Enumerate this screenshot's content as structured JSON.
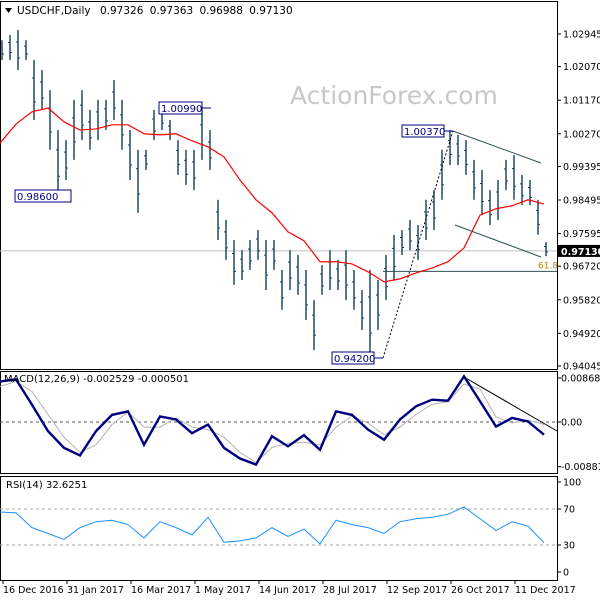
{
  "header": {
    "menu_icon": "triangle-down-icon",
    "symbol": "USDCHF,Daily",
    "open": "0.97326",
    "high": "0.97363",
    "low": "0.96988",
    "close": "0.97130"
  },
  "watermark": "ActionForex.com",
  "colors": {
    "bars": "#123f5e",
    "moving_average": "#ff0000",
    "macd": "#000080",
    "signal": "#b4b4b4",
    "rsi": "#1e90ff",
    "label_border": "#000080",
    "price_tag_bg": "#000000"
  },
  "chart_data": [
    {
      "type": "ohlc",
      "panel": "price",
      "ylim": [
        0.94045,
        1.02945
      ],
      "y_ticks": [
        "1.02945",
        "1.02070",
        "1.01170",
        "1.00270",
        "0.99395",
        "0.98495",
        "0.97595",
        "0.96720",
        "0.95820",
        "0.94920",
        "0.94045"
      ],
      "x_ticks": [
        "16 Dec 2016",
        "31 Jan 2017",
        "16 Mar 2017",
        "1 May 2017",
        "14 Jun 2017",
        "28 Jul 2017",
        "12 Sep 2017",
        "26 Oct 2017",
        "11 Dec 2017"
      ],
      "bars_high_low": [
        [
          1.0278,
          1.0225
        ],
        [
          1.0292,
          1.0225
        ],
        [
          1.0305,
          1.0198
        ],
        [
          1.0278,
          1.0225
        ],
        [
          1.0225,
          1.0064
        ],
        [
          1.0198,
          1.0091
        ],
        [
          1.0144,
          0.9984
        ],
        [
          1.0037,
          0.986
        ],
        [
          1.001,
          0.9903
        ],
        [
          1.0118,
          0.9957
        ],
        [
          1.0144,
          1.001
        ],
        [
          1.0091,
          0.9984
        ],
        [
          1.0118,
          1.001
        ],
        [
          1.0118,
          1.0037
        ],
        [
          1.0171,
          1.0064
        ],
        [
          1.0118,
          0.9984
        ],
        [
          1.0037,
          0.9903
        ],
        [
          0.9984,
          0.9815
        ],
        [
          0.9984,
          0.993
        ],
        [
          1.0091,
          1.001
        ],
        [
          1.0099,
          1.0037
        ],
        [
          1.0064,
          1.001
        ],
        [
          1.001,
          0.9917
        ],
        [
          0.9984,
          0.989
        ],
        [
          0.9984,
          0.9876
        ],
        [
          1.0091,
          0.9957
        ],
        [
          1.0037,
          0.993
        ],
        [
          0.985,
          0.9742
        ],
        [
          0.9796,
          0.9689
        ],
        [
          0.9742,
          0.9622
        ],
        [
          0.9715,
          0.9635
        ],
        [
          0.9742,
          0.9662
        ],
        [
          0.9769,
          0.9689
        ],
        [
          0.9742,
          0.9608
        ],
        [
          0.9742,
          0.9662
        ],
        [
          0.9662,
          0.9555
        ],
        [
          0.9715,
          0.9608
        ],
        [
          0.9702,
          0.9595
        ],
        [
          0.9662,
          0.9528
        ],
        [
          0.9581,
          0.9447
        ],
        [
          0.9675,
          0.9595
        ],
        [
          0.9715,
          0.9608
        ],
        [
          0.9689,
          0.9608
        ],
        [
          0.9715,
          0.9581
        ],
        [
          0.9662,
          0.9555
        ],
        [
          0.9608,
          0.9501
        ],
        [
          0.9662,
          0.942
        ],
        [
          0.9635,
          0.9501
        ],
        [
          0.9702,
          0.9581
        ],
        [
          0.9756,
          0.9635
        ],
        [
          0.9769,
          0.9702
        ],
        [
          0.9796,
          0.9715
        ],
        [
          0.9782,
          0.9689
        ],
        [
          0.985,
          0.9742
        ],
        [
          0.9876,
          0.9769
        ],
        [
          0.9984,
          0.985
        ],
        [
          1.0037,
          0.9943
        ],
        [
          1.0024,
          0.9943
        ],
        [
          1.001,
          0.9917
        ],
        [
          0.9957,
          0.985
        ],
        [
          0.993,
          0.9809
        ],
        [
          0.9876,
          0.9782
        ],
        [
          0.9903,
          0.9796
        ],
        [
          0.9957,
          0.9876
        ],
        [
          0.997,
          0.985
        ],
        [
          0.9917,
          0.9836
        ],
        [
          0.9903,
          0.9836
        ],
        [
          0.985,
          0.9756
        ],
        [
          0.97363,
          0.96988
        ]
      ],
      "moving_average": [
        1.0002,
        1.0053,
        1.0086,
        1.0096,
        1.0059,
        1.0037,
        1.004,
        1.0051,
        1.0051,
        1.0027,
        1.0024,
        1.0027,
        1.0008,
        0.9992,
        0.9965,
        0.9903,
        0.985,
        0.9815,
        0.9764,
        0.974,
        0.9684,
        0.9684,
        0.9678,
        0.9657,
        0.963,
        0.9638,
        0.9654,
        0.9667,
        0.9684,
        0.9721,
        0.9809,
        0.9826,
        0.9834,
        0.985,
        0.9839
      ],
      "current_price": "0.97130",
      "annotations": {
        "swing_low_1": "0.98600",
        "swing_high_1": "1.00990",
        "swing_high_2": "1.00370",
        "swing_low_2": "0.94200",
        "fib_level": "61.8",
        "fib_price": 0.9658
      }
    },
    {
      "type": "line",
      "panel": "macd",
      "title": "MACD(12,26,9) -0.002529 -0.000501",
      "ylim": [
        -0.008818,
        0.00868
      ],
      "y_ticks": [
        "0.00868",
        "0.00",
        "-0.008818"
      ],
      "series": [
        {
          "values": [
            0.008,
            0.0084,
            0.0034,
            -0.0018,
            -0.0051,
            -0.0066,
            -0.0018,
            0.0014,
            0.0021,
            -0.0045,
            0.0011,
            0.0005,
            -0.0022,
            -0.0005,
            -0.0051,
            -0.0072,
            -0.0084,
            -0.0028,
            -0.0048,
            -0.0026,
            -0.0055,
            0.0021,
            0.0014,
            -0.0015,
            -0.0035,
            0.0005,
            0.0031,
            0.0044,
            0.0042,
            0.009,
            0.0041,
            -0.0009,
            0.0008,
            0.0001,
            -0.0025
          ]
        },
        {
          "values": [
            0.007,
            0.008,
            0.006,
            0.0015,
            -0.003,
            -0.006,
            -0.0045,
            -0.0005,
            0.002,
            -0.001,
            -0.001,
            0.0008,
            -0.001,
            -0.0015,
            -0.003,
            -0.006,
            -0.008,
            -0.005,
            -0.0042,
            -0.004,
            -0.0045,
            -0.001,
            0.0012,
            -0.0002,
            -0.0025,
            -0.001,
            0.0015,
            0.0035,
            0.004,
            0.0075,
            0.0065,
            0.001,
            -0.0002,
            0.0004,
            -0.0005
          ]
        }
      ]
    },
    {
      "type": "line",
      "panel": "rsi",
      "title": "RSI(14) 32.6251",
      "ylim": [
        0,
        100
      ],
      "y_ticks": [
        "100",
        "70",
        "30",
        "0"
      ],
      "levels": [
        70,
        30
      ],
      "values": [
        66.7,
        65.7,
        49.3,
        42.8,
        36.2,
        49.3,
        55.9,
        57.5,
        52.6,
        37.9,
        55.9,
        49.3,
        41.1,
        60.8,
        33.0,
        34.6,
        37.9,
        49.3,
        39.5,
        47.7,
        31.3,
        57.5,
        52.6,
        49.3,
        42.8,
        55.9,
        59.2,
        60.8,
        64.1,
        72.3,
        59.2,
        46.1,
        55.9,
        51.0,
        32.6
      ]
    }
  ]
}
